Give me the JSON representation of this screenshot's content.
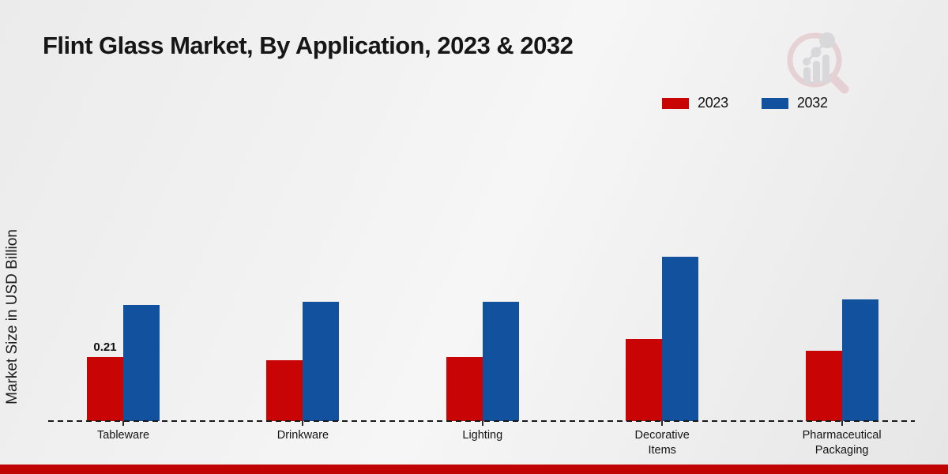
{
  "header": {
    "title": "Flint Glass Market, By Application, 2023 & 2032"
  },
  "branding": {
    "logo_icon": "magnifier-bar-chart-logo",
    "logo_circle_color": "#debabe",
    "logo_bars_color": "#c7c7cb"
  },
  "legend": {
    "position": "top-right"
  },
  "y_axis": {
    "label": "Market Size in USD Billion"
  },
  "footer": {
    "accent_bar_color": "#c00404"
  },
  "chart_data": {
    "type": "bar",
    "title": "Flint Glass Market, By Application, 2023 & 2032",
    "categories": [
      "Tableware",
      "Drinkware",
      "Lighting",
      "Decorative Items",
      "Pharmaceutical Packaging"
    ],
    "series": [
      {
        "name": "2023",
        "color": "#c80404",
        "values": [
          0.21,
          0.2,
          0.21,
          0.27,
          0.23
        ]
      },
      {
        "name": "2032",
        "color": "#11519e",
        "values": [
          0.38,
          0.39,
          0.39,
          0.54,
          0.4
        ]
      }
    ],
    "xlabel": "",
    "ylabel": "Market Size in USD Billion",
    "ylim": [
      0,
      0.6
    ],
    "grid": false,
    "legend_position": "top-right",
    "baseline_style": "dashed",
    "annotations": [
      {
        "category": "Tableware",
        "series": "2023",
        "text": "0.21"
      }
    ]
  }
}
